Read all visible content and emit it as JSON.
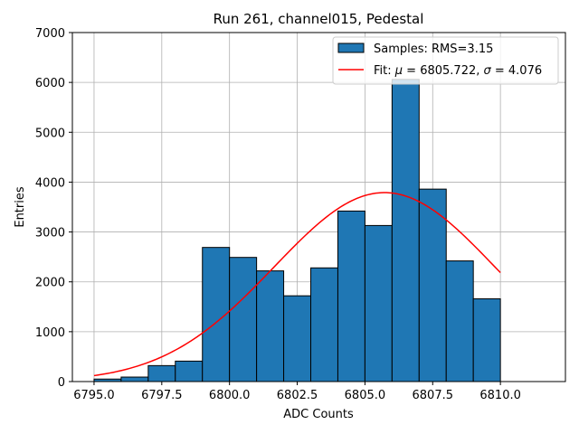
{
  "chart_data": {
    "type": "bar",
    "title": "Run 261, channel015, Pedestal",
    "xlabel": "ADC Counts",
    "ylabel": "Entries",
    "xlim": [
      6794.2,
      6812.4
    ],
    "ylim": [
      0,
      7000
    ],
    "xticks": [
      6795.0,
      6797.5,
      6800.0,
      6802.5,
      6805.0,
      6807.5,
      6810.0
    ],
    "xtick_labels": [
      "6795.0",
      "6797.5",
      "6800.0",
      "6802.5",
      "6805.0",
      "6807.5",
      "6810.0"
    ],
    "yticks": [
      0,
      1000,
      2000,
      3000,
      4000,
      5000,
      6000,
      7000
    ],
    "ytick_labels": [
      "0",
      "1000",
      "2000",
      "3000",
      "4000",
      "5000",
      "6000",
      "7000"
    ],
    "grid": true,
    "legend_position": "top-right",
    "bar_color": "#1f77b4",
    "bar_edge_color": "#000000",
    "bin_edges": [
      6795.0,
      6796.0,
      6797.0,
      6798.0,
      6799.0,
      6800.0,
      6801.0,
      6802.0,
      6803.0,
      6804.0,
      6805.0,
      6806.0,
      6807.0,
      6808.0,
      6809.0,
      6810.0
    ],
    "values": [
      50,
      90,
      320,
      410,
      2690,
      2490,
      2220,
      1720,
      2280,
      3420,
      3130,
      6060,
      3860,
      2420,
      1660
    ],
    "series": [
      {
        "name": "Samples: RMS=3.15",
        "kind": "histogram"
      },
      {
        "name": "Fit: μ = 6805.722, σ = 4.076",
        "kind": "gaussian-fit",
        "color": "#ff0000",
        "mu": 6805.722,
        "sigma": 4.076,
        "amplitude": 3790,
        "x_range": [
          6795.0,
          6810.0
        ]
      }
    ],
    "legend": [
      {
        "label": "Samples: RMS=3.15",
        "color": "#1f77b4"
      },
      {
        "label_prefix": "Fit: ",
        "mu_symbol": "μ",
        "mu_text": " = 6805.722, ",
        "sigma_symbol": "σ",
        "sigma_text": " = 4.076",
        "color": "#ff0000"
      }
    ]
  }
}
